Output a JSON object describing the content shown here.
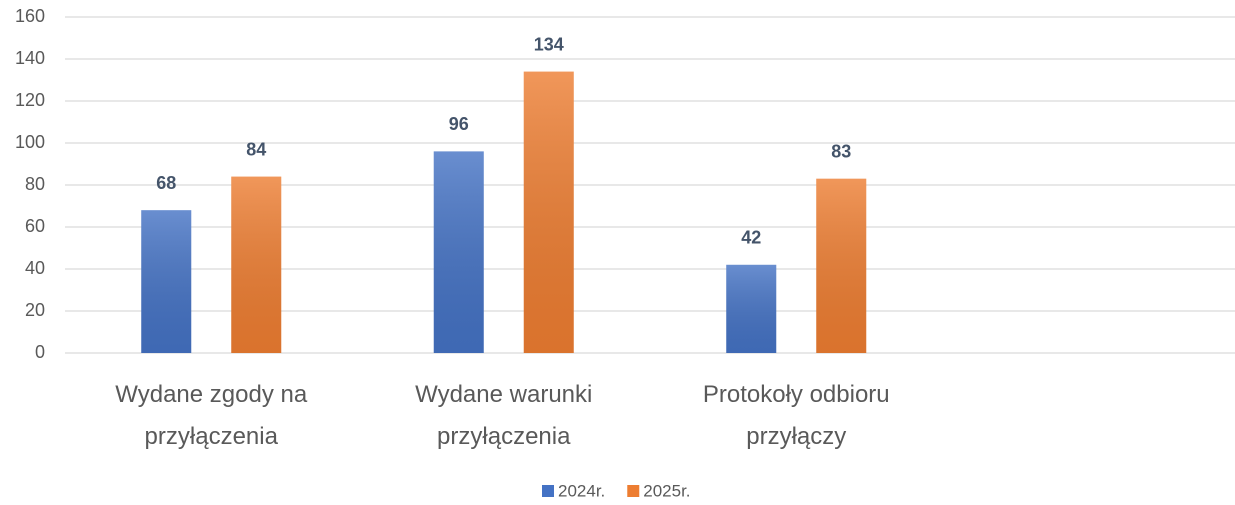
{
  "chart_data": {
    "type": "bar",
    "categories": [
      "Wydane zgody na przyłączenia",
      "Wydane warunki przyłączenia",
      "Protokoły odbioru przyłączy",
      null
    ],
    "series": [
      {
        "name": "2024r.",
        "color": "#4472c4",
        "values": [
          68,
          96,
          42,
          null
        ]
      },
      {
        "name": "2025r.",
        "color": "#ed7d31",
        "values": [
          84,
          134,
          83,
          null
        ]
      }
    ],
    "ylim": [
      0,
      160
    ],
    "yticks": [
      0,
      20,
      40,
      60,
      80,
      100,
      120,
      140,
      160
    ],
    "grid": true,
    "legend": "bottom"
  }
}
